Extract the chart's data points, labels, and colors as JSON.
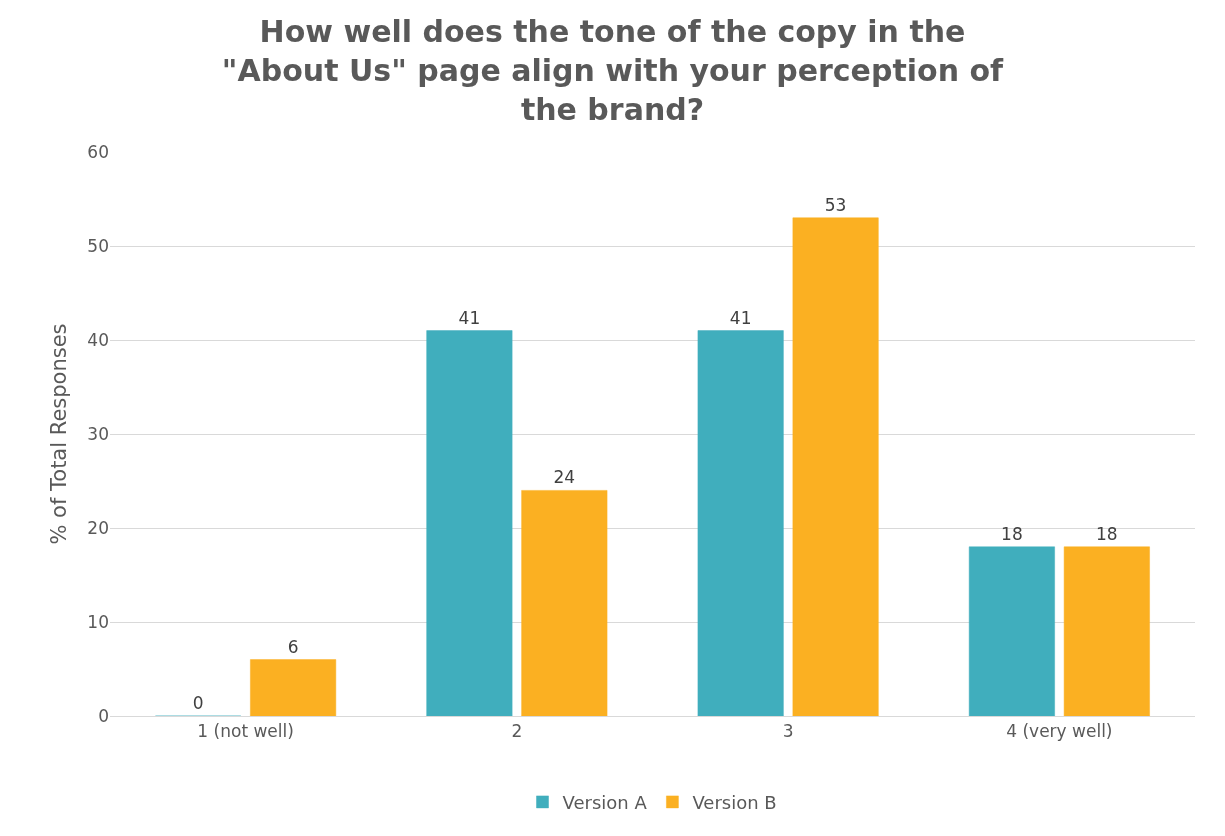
{
  "chart_data": {
    "type": "bar",
    "title": "How well does the tone of the copy in the \"About Us\" page align with your perception of the brand?",
    "ylabel": "% of Total Responses",
    "categories": [
      "1 (not well)",
      "2",
      "3",
      "4 (very well)"
    ],
    "series": [
      {
        "name": "Version A",
        "color": "#40aebd",
        "values": [
          0,
          41,
          41,
          18
        ]
      },
      {
        "name": "Version B",
        "color": "#fbb022",
        "values": [
          6,
          24,
          53,
          18
        ]
      }
    ],
    "ylim": [
      0,
      60
    ],
    "yticks": [
      0,
      10,
      20,
      30,
      40,
      50,
      60
    ],
    "grid": "y",
    "legend": "bottom",
    "data_labels": true
  }
}
